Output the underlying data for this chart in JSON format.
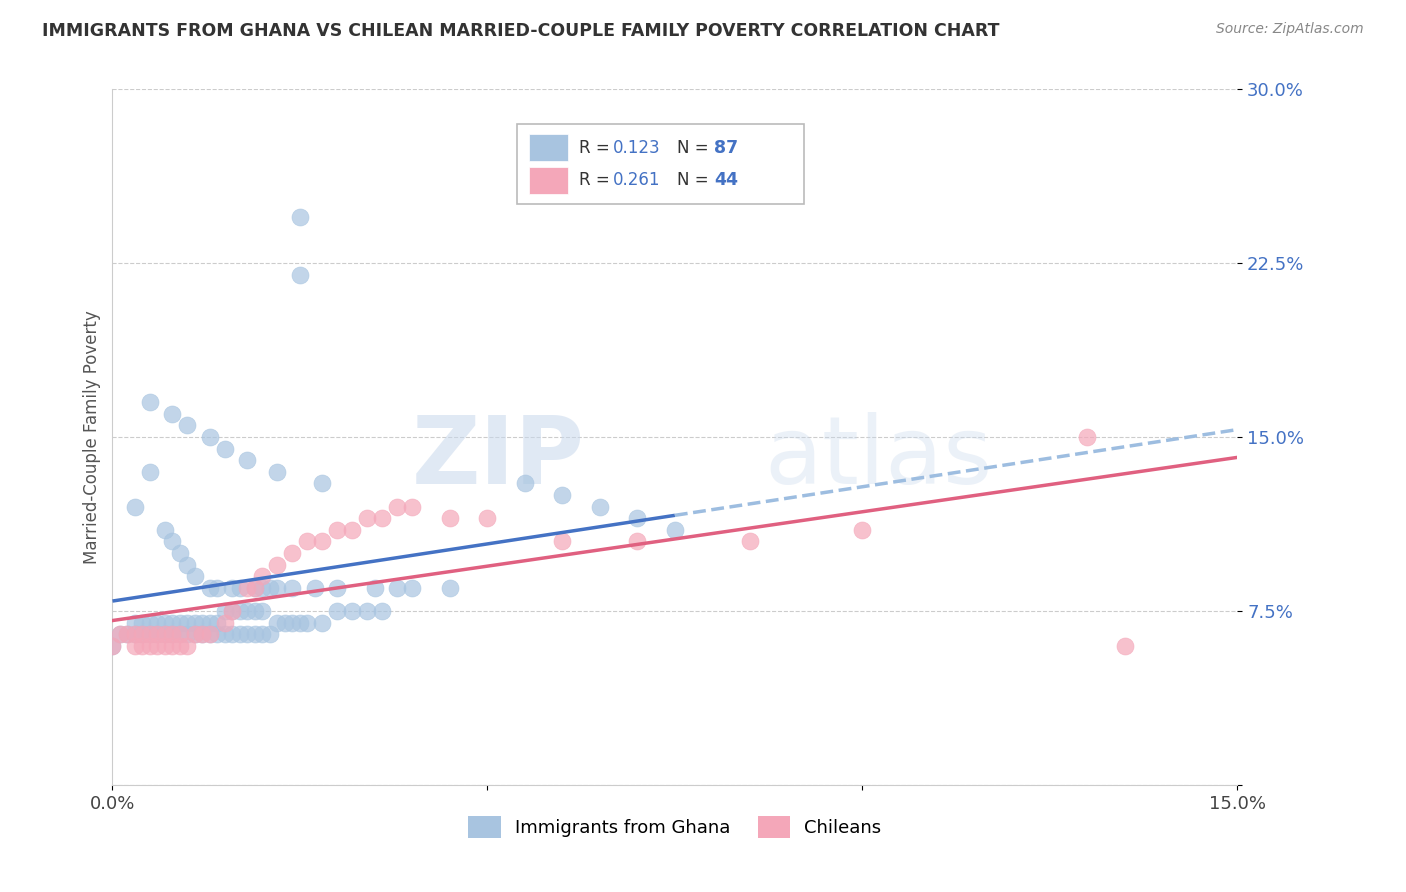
{
  "title": "IMMIGRANTS FROM GHANA VS CHILEAN MARRIED-COUPLE FAMILY POVERTY CORRELATION CHART",
  "source": "Source: ZipAtlas.com",
  "ylabel": "Married-Couple Family Poverty",
  "legend_labels": [
    "Immigrants from Ghana",
    "Chileans"
  ],
  "ghana_R": "0.123",
  "ghana_N": "87",
  "chilean_R": "0.261",
  "chilean_N": "44",
  "xlim": [
    0.0,
    0.15
  ],
  "ylim": [
    0.0,
    0.3
  ],
  "xticks": [
    0.0,
    0.05,
    0.1,
    0.15
  ],
  "xticklabels": [
    "0.0%",
    "",
    "",
    "15.0%"
  ],
  "yticks": [
    0.0,
    0.075,
    0.15,
    0.225,
    0.3
  ],
  "yticklabels": [
    "",
    "7.5%",
    "15.0%",
    "22.5%",
    "30.0%"
  ],
  "ghana_color": "#a8c4e0",
  "chilean_color": "#f4a7b9",
  "ghana_line_color": "#4472c4",
  "chilean_line_color": "#e06080",
  "ghana_dashed_color": "#9dbde0",
  "watermark_zip": "ZIP",
  "watermark_atlas": "atlas",
  "ghana_x": [
    0.0,
    0.001,
    0.002,
    0.003,
    0.003,
    0.004,
    0.004,
    0.005,
    0.005,
    0.006,
    0.006,
    0.007,
    0.007,
    0.008,
    0.008,
    0.009,
    0.009,
    0.01,
    0.01,
    0.011,
    0.011,
    0.012,
    0.012,
    0.013,
    0.013,
    0.014,
    0.014,
    0.015,
    0.015,
    0.016,
    0.016,
    0.017,
    0.017,
    0.018,
    0.018,
    0.019,
    0.019,
    0.02,
    0.02,
    0.021,
    0.022,
    0.023,
    0.024,
    0.025,
    0.026,
    0.028,
    0.03,
    0.032,
    0.034,
    0.036,
    0.003,
    0.005,
    0.007,
    0.008,
    0.009,
    0.01,
    0.011,
    0.013,
    0.014,
    0.016,
    0.017,
    0.019,
    0.02,
    0.021,
    0.022,
    0.024,
    0.027,
    0.03,
    0.035,
    0.038,
    0.04,
    0.045,
    0.005,
    0.008,
    0.01,
    0.013,
    0.015,
    0.018,
    0.022,
    0.025,
    0.025,
    0.028,
    0.055,
    0.06,
    0.065,
    0.07,
    0.075
  ],
  "ghana_y": [
    0.06,
    0.065,
    0.065,
    0.065,
    0.07,
    0.065,
    0.07,
    0.065,
    0.07,
    0.065,
    0.07,
    0.065,
    0.07,
    0.065,
    0.07,
    0.065,
    0.07,
    0.065,
    0.07,
    0.065,
    0.07,
    0.065,
    0.07,
    0.065,
    0.07,
    0.065,
    0.07,
    0.065,
    0.075,
    0.065,
    0.075,
    0.065,
    0.075,
    0.065,
    0.075,
    0.065,
    0.075,
    0.065,
    0.075,
    0.065,
    0.07,
    0.07,
    0.07,
    0.07,
    0.07,
    0.07,
    0.075,
    0.075,
    0.075,
    0.075,
    0.12,
    0.135,
    0.11,
    0.105,
    0.1,
    0.095,
    0.09,
    0.085,
    0.085,
    0.085,
    0.085,
    0.085,
    0.085,
    0.085,
    0.085,
    0.085,
    0.085,
    0.085,
    0.085,
    0.085,
    0.085,
    0.085,
    0.165,
    0.16,
    0.155,
    0.15,
    0.145,
    0.14,
    0.135,
    0.245,
    0.22,
    0.13,
    0.13,
    0.125,
    0.12,
    0.115,
    0.11
  ],
  "chilean_x": [
    0.0,
    0.001,
    0.002,
    0.003,
    0.003,
    0.004,
    0.004,
    0.005,
    0.005,
    0.006,
    0.006,
    0.007,
    0.007,
    0.008,
    0.008,
    0.009,
    0.009,
    0.01,
    0.011,
    0.012,
    0.013,
    0.015,
    0.016,
    0.018,
    0.019,
    0.02,
    0.022,
    0.024,
    0.026,
    0.028,
    0.03,
    0.032,
    0.034,
    0.036,
    0.038,
    0.04,
    0.045,
    0.05,
    0.06,
    0.07,
    0.085,
    0.1,
    0.13,
    0.135
  ],
  "chilean_y": [
    0.06,
    0.065,
    0.065,
    0.06,
    0.065,
    0.06,
    0.065,
    0.06,
    0.065,
    0.06,
    0.065,
    0.06,
    0.065,
    0.06,
    0.065,
    0.06,
    0.065,
    0.06,
    0.065,
    0.065,
    0.065,
    0.07,
    0.075,
    0.085,
    0.085,
    0.09,
    0.095,
    0.1,
    0.105,
    0.105,
    0.11,
    0.11,
    0.115,
    0.115,
    0.12,
    0.12,
    0.115,
    0.115,
    0.105,
    0.105,
    0.105,
    0.11,
    0.15,
    0.06
  ]
}
